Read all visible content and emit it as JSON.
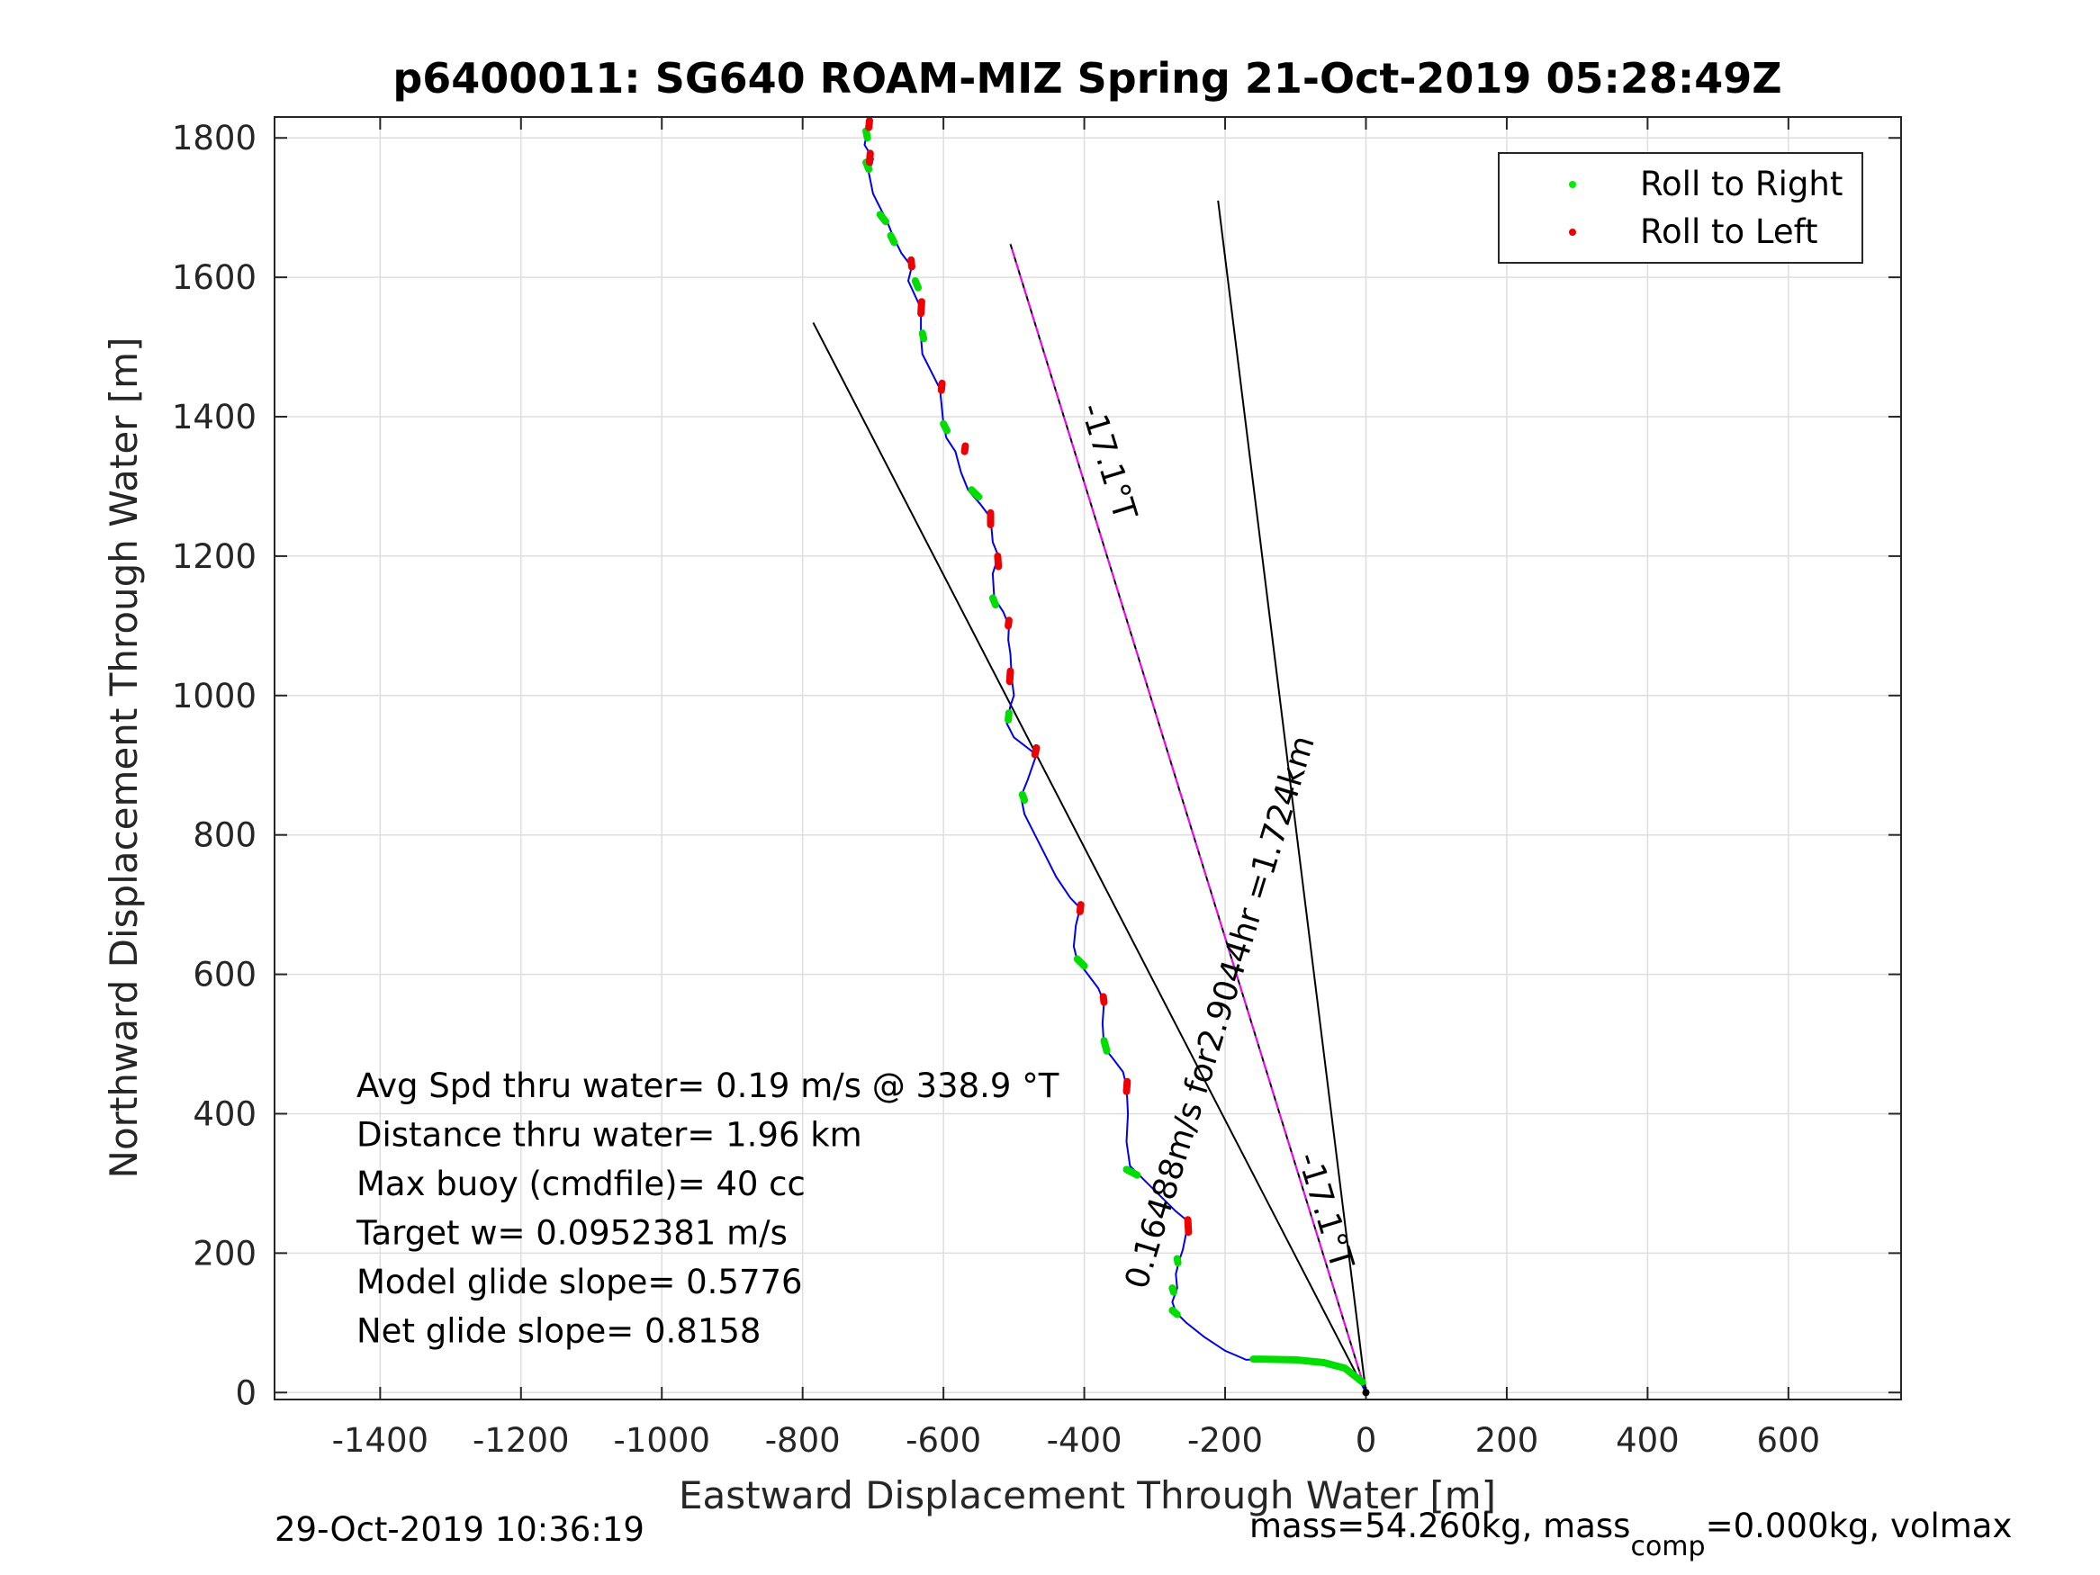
{
  "chart_data": {
    "type": "line",
    "title": "p6400011: SG640 ROAM-MIZ Spring 21-Oct-2019 05:28:49Z",
    "xlabel": "Eastward Displacement Through Water [m]",
    "ylabel": "Northward Displacement Through Water [m]",
    "xlim": [
      -1550,
      760
    ],
    "ylim": [
      -10,
      1830
    ],
    "xticks": [
      -1400,
      -1200,
      -1000,
      -800,
      -600,
      -400,
      -200,
      0,
      200,
      400,
      600
    ],
    "yticks": [
      0,
      200,
      400,
      600,
      800,
      1000,
      1200,
      1400,
      1600,
      1800
    ],
    "grid": true,
    "legend": {
      "placement": "top-right",
      "entries": [
        {
          "label": "Roll to Right",
          "color": "#00ee00"
        },
        {
          "label": "Roll to Left",
          "color": "#ee0000"
        }
      ]
    },
    "track": {
      "color": "#0000ee",
      "points": [
        [
          0,
          0
        ],
        [
          -10,
          20
        ],
        [
          -30,
          35
        ],
        [
          -60,
          43
        ],
        [
          -100,
          47
        ],
        [
          -150,
          48
        ],
        [
          -170,
          47
        ],
        [
          -200,
          60
        ],
        [
          -230,
          80
        ],
        [
          -255,
          100
        ],
        [
          -270,
          115
        ],
        [
          -275,
          130
        ],
        [
          -268,
          150
        ],
        [
          -270,
          170
        ],
        [
          -265,
          190
        ],
        [
          -260,
          205
        ],
        [
          -255,
          230
        ],
        [
          -252,
          245
        ],
        [
          -270,
          260
        ],
        [
          -300,
          290
        ],
        [
          -320,
          310
        ],
        [
          -335,
          325
        ],
        [
          -340,
          360
        ],
        [
          -338,
          400
        ],
        [
          -340,
          440
        ],
        [
          -345,
          460
        ],
        [
          -360,
          480
        ],
        [
          -372,
          495
        ],
        [
          -374,
          530
        ],
        [
          -372,
          560
        ],
        [
          -380,
          580
        ],
        [
          -395,
          600
        ],
        [
          -410,
          620
        ],
        [
          -415,
          640
        ],
        [
          -412,
          670
        ],
        [
          -406,
          695
        ],
        [
          -420,
          710
        ],
        [
          -440,
          740
        ],
        [
          -455,
          770
        ],
        [
          -470,
          800
        ],
        [
          -485,
          830
        ],
        [
          -490,
          855
        ],
        [
          -480,
          880
        ],
        [
          -468,
          915
        ],
        [
          -500,
          940
        ],
        [
          -510,
          960
        ],
        [
          -505,
          985
        ],
        [
          -500,
          1000
        ],
        [
          -503,
          1025
        ],
        [
          -505,
          1060
        ],
        [
          -508,
          1080
        ],
        [
          -507,
          1100
        ],
        [
          -515,
          1120
        ],
        [
          -528,
          1140
        ],
        [
          -530,
          1175
        ],
        [
          -522,
          1200
        ],
        [
          -530,
          1220
        ],
        [
          -533,
          1255
        ],
        [
          -548,
          1275
        ],
        [
          -565,
          1295
        ],
        [
          -575,
          1320
        ],
        [
          -583,
          1350
        ],
        [
          -596,
          1370
        ],
        [
          -600,
          1390
        ],
        [
          -603,
          1420
        ],
        [
          -605,
          1440
        ],
        [
          -620,
          1470
        ],
        [
          -630,
          1490
        ],
        [
          -632,
          1515
        ],
        [
          -632,
          1545
        ],
        [
          -634,
          1560
        ],
        [
          -650,
          1595
        ],
        [
          -645,
          1615
        ],
        [
          -660,
          1635
        ],
        [
          -672,
          1660
        ],
        [
          -680,
          1680
        ],
        [
          -690,
          1700
        ],
        [
          -700,
          1720
        ],
        [
          -706,
          1750
        ],
        [
          -700,
          1770
        ],
        [
          -712,
          1790
        ],
        [
          -708,
          1810
        ],
        [
          -705,
          1825
        ]
      ]
    },
    "roll_right_segments": [
      [
        [
          -160,
          48
        ],
        [
          -100,
          47
        ],
        [
          -60,
          43
        ],
        [
          -30,
          35
        ],
        [
          -5,
          15
        ]
      ],
      [
        [
          -275,
          118
        ],
        [
          -268,
          112
        ]
      ],
      [
        [
          -275,
          150
        ],
        [
          -273,
          144
        ]
      ],
      [
        [
          -268,
          192
        ],
        [
          -267,
          186
        ]
      ],
      [
        [
          -340,
          320
        ],
        [
          -325,
          312
        ]
      ],
      [
        [
          -372,
          505
        ],
        [
          -368,
          490
        ]
      ],
      [
        [
          -410,
          622
        ],
        [
          -400,
          612
        ]
      ],
      [
        [
          -488,
          858
        ],
        [
          -485,
          850
        ]
      ],
      [
        [
          -507,
          975
        ],
        [
          -508,
          965
        ]
      ],
      [
        [
          -530,
          1140
        ],
        [
          -526,
          1130
        ]
      ],
      [
        [
          -560,
          1295
        ],
        [
          -550,
          1285
        ]
      ],
      [
        [
          -600,
          1390
        ],
        [
          -595,
          1380
        ]
      ],
      [
        [
          -630,
          1520
        ],
        [
          -628,
          1512
        ]
      ],
      [
        [
          -640,
          1595
        ],
        [
          -636,
          1585
        ]
      ],
      [
        [
          -675,
          1660
        ],
        [
          -670,
          1650
        ]
      ],
      [
        [
          -690,
          1690
        ],
        [
          -682,
          1680
        ]
      ],
      [
        [
          -710,
          1765
        ],
        [
          -706,
          1755
        ]
      ],
      [
        [
          -710,
          1810
        ],
        [
          -708,
          1800
        ]
      ]
    ],
    "roll_left_segments": [
      [
        [
          -252,
          230
        ],
        [
          -253,
          248
        ]
      ],
      [
        [
          -340,
          432
        ],
        [
          -339,
          446
        ]
      ],
      [
        [
          -372,
          560
        ],
        [
          -373,
          568
        ]
      ],
      [
        [
          -406,
          690
        ],
        [
          -405,
          700
        ]
      ],
      [
        [
          -470,
          915
        ],
        [
          -468,
          925
        ]
      ],
      [
        [
          -506,
          1020
        ],
        [
          -505,
          1035
        ]
      ],
      [
        [
          -508,
          1100
        ],
        [
          -507,
          1108
        ]
      ],
      [
        [
          -522,
          1185
        ],
        [
          -523,
          1200
        ]
      ],
      [
        [
          -533,
          1245
        ],
        [
          -533,
          1262
        ]
      ],
      [
        [
          -570,
          1350
        ],
        [
          -569,
          1358
        ]
      ],
      [
        [
          -603,
          1438
        ],
        [
          -602,
          1448
        ]
      ],
      [
        [
          -632,
          1548
        ],
        [
          -631,
          1565
        ]
      ],
      [
        [
          -645,
          1615
        ],
        [
          -646,
          1625
        ]
      ],
      [
        [
          -705,
          1765
        ],
        [
          -704,
          1778
        ]
      ],
      [
        [
          -706,
          1815
        ],
        [
          -705,
          1825
        ]
      ]
    ],
    "guide_lines": [
      {
        "from": [
          0,
          0
        ],
        "to": [
          -785,
          1535
        ],
        "color": "#000000"
      },
      {
        "from": [
          0,
          0
        ],
        "to": [
          -505,
          1648
        ],
        "color": "#000000"
      },
      {
        "from": [
          0,
          0
        ],
        "to": [
          -505,
          1648
        ],
        "color": "#ff00ff",
        "dashed": true
      },
      {
        "from": [
          0,
          0
        ],
        "to": [
          -210,
          1710
        ],
        "color": "#000000"
      }
    ],
    "line_labels": [
      {
        "text": "-17.1°T",
        "x": -368,
        "y": 1335,
        "angle": 73
      },
      {
        "text": "0.16488m/s for2.9044hr =1.724km",
        "x": -205,
        "y": 545,
        "angle": -73
      },
      {
        "text": "-17.1°T",
        "x": -60,
        "y": 260,
        "angle": 73
      }
    ],
    "stats": [
      "Avg Spd thru water=  0.19 m/s @ 338.9 °T",
      "Distance thru water=  1.96 km",
      "Max buoy (cmdfile)= 40 cc",
      "Target w= 0.0952381 m/s",
      "Model glide slope= 0.5776",
      "Net glide slope= 0.8158"
    ]
  },
  "footer": {
    "timestamp": "29-Oct-2019 10:36:19",
    "mass_prefix": "mass=54.260kg, mass",
    "mass_sub": "comp",
    "mass_suffix": "=0.000kg, volmax"
  }
}
